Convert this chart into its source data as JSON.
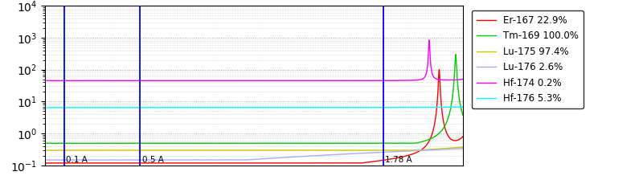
{
  "title": "",
  "xlim_lambda": [
    0.01,
    5.0
  ],
  "ylim": [
    0.1,
    10000.0
  ],
  "vline_lambdas": [
    1.78,
    0.5,
    0.1
  ],
  "vline_labels": [
    "1.78 A",
    "0.5 A",
    "0.1 A"
  ],
  "legend_entries": [
    {
      "label": "Er-167 22.9%",
      "color": "#ff0000"
    },
    {
      "label": "Tm-169 100.0%",
      "color": "#00cc00"
    },
    {
      "label": "Lu-175 97.4%",
      "color": "#cccc00"
    },
    {
      "label": "Lu-176 2.6%",
      "color": "#aaaaff"
    },
    {
      "label": "Hf-174 0.2%",
      "color": "#ff00ff"
    },
    {
      "label": "Hf-176 5.3%",
      "color": "#00ffff"
    }
  ],
  "background_color": "#ffffff"
}
